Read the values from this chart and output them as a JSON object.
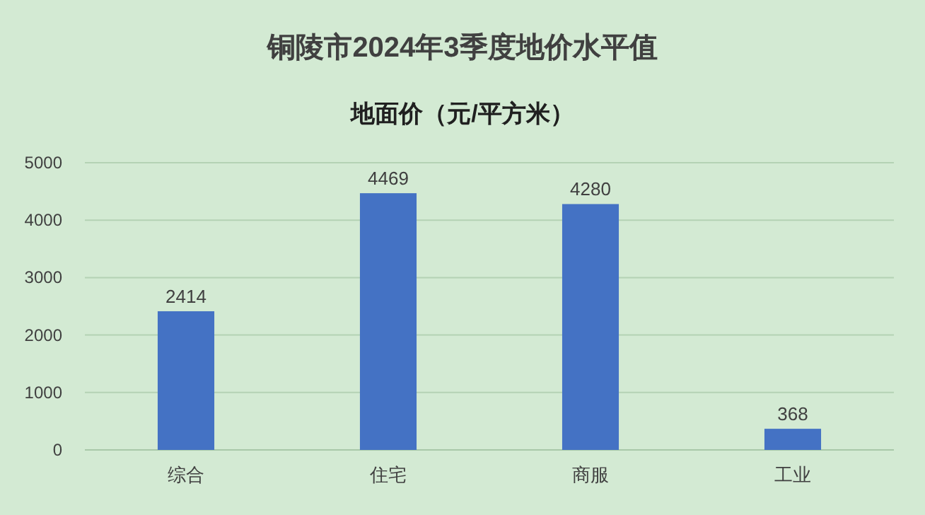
{
  "chart_data": {
    "type": "bar",
    "title": "铜陵市2024年3季度地价水平值",
    "subtitle": "地面价（元/平方米）",
    "categories": [
      "综合",
      "住宅",
      "商服",
      "工业"
    ],
    "values": [
      2414,
      4469,
      4280,
      368
    ],
    "color": "#4472c4",
    "ylim": [
      0,
      5000
    ],
    "yticks": [
      0,
      1000,
      2000,
      3000,
      4000,
      5000
    ],
    "grid": "y",
    "data_labels": true
  }
}
